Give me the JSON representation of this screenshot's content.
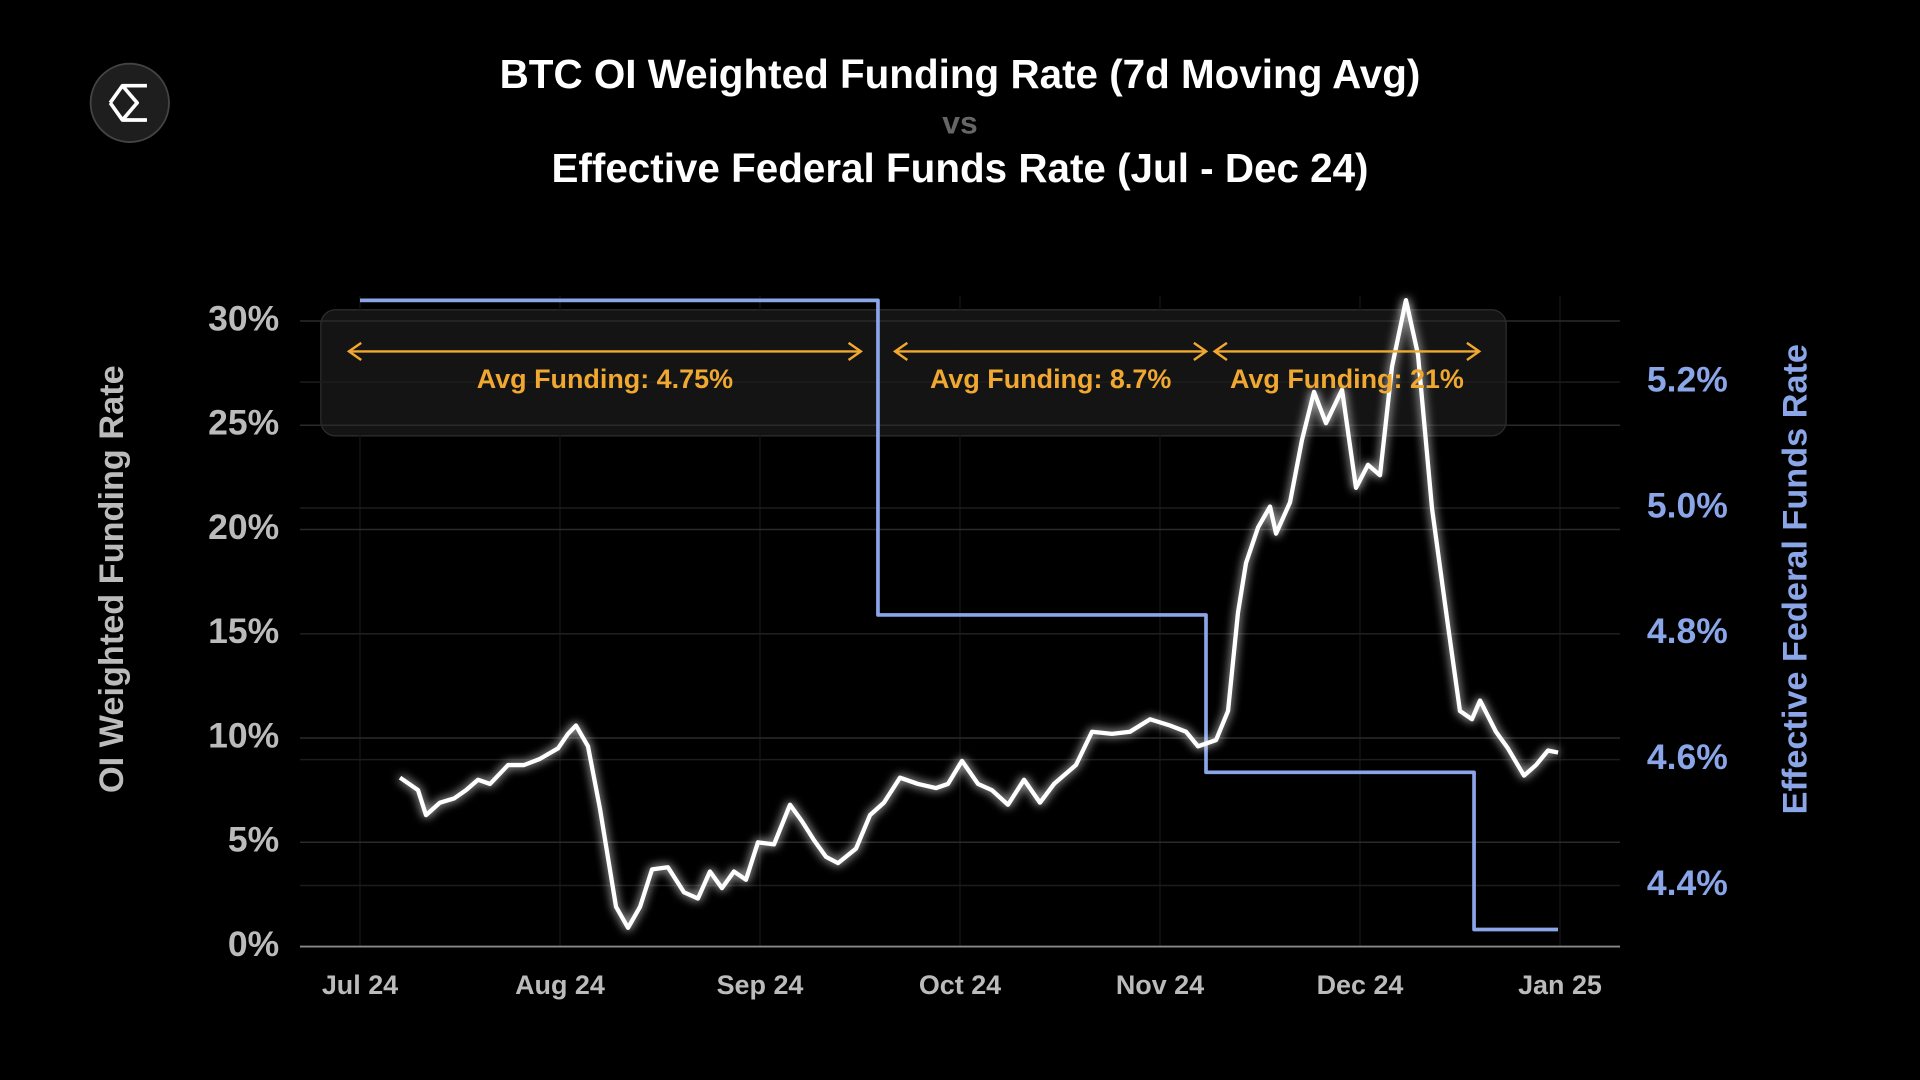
{
  "chart_data": {
    "type": "line",
    "title": [
      "BTC OI Weighted Funding Rate (7d Moving Avg)",
      "vs",
      "Effective Federal Funds Rate (Jul - Dec 24)"
    ],
    "ylabel": "OI Weighted Funding Rate",
    "y2label": "Effective Federal Funds Rate",
    "xlim": [
      -0.3,
      6.3
    ],
    "xticks": [
      {
        "value": 0,
        "label": "Jul 24"
      },
      {
        "value": 1,
        "label": "Aug 24"
      },
      {
        "value": 2,
        "label": "Sep 24"
      },
      {
        "value": 3,
        "label": "Oct 24"
      },
      {
        "value": 4,
        "label": "Nov 24"
      },
      {
        "value": 5,
        "label": "Dec 24"
      },
      {
        "value": 6,
        "label": "Jan 25"
      }
    ],
    "ylim": [
      0,
      31.2
    ],
    "yticks": [
      {
        "value": 0,
        "label": "0%"
      },
      {
        "value": 5,
        "label": "5%"
      },
      {
        "value": 10,
        "label": "10%"
      },
      {
        "value": 15,
        "label": "15%"
      },
      {
        "value": 20,
        "label": "20%"
      },
      {
        "value": 25,
        "label": "25%"
      },
      {
        "value": 30,
        "label": "30%"
      }
    ],
    "y2lim": [
      4.303,
      5.337
    ],
    "y2ticks": [
      {
        "value": 4.4,
        "label": "4.4%"
      },
      {
        "value": 4.6,
        "label": "4.6%"
      },
      {
        "value": 4.8,
        "label": "4.8%"
      },
      {
        "value": 5.0,
        "label": "5.0%"
      },
      {
        "value": 5.2,
        "label": "5.2%"
      }
    ],
    "grid": true,
    "series": [
      {
        "color": "#ffffff",
        "x": [
          0.2,
          0.29,
          0.33,
          0.4,
          0.47,
          0.53,
          0.59,
          0.65,
          0.74,
          0.82,
          0.9,
          0.99,
          1.04,
          1.08,
          1.14,
          1.2,
          1.28,
          1.34,
          1.4,
          1.46,
          1.54,
          1.62,
          1.69,
          1.75,
          1.81,
          1.87,
          1.93,
          1.99,
          2.07,
          2.15,
          2.21,
          2.27,
          2.33,
          2.39,
          2.48,
          2.55,
          2.62,
          2.7,
          2.79,
          2.88,
          2.94,
          3.01,
          3.09,
          3.16,
          3.24,
          3.32,
          3.4,
          3.47,
          3.58,
          3.66,
          3.76,
          3.85,
          3.95,
          4.05,
          4.13,
          4.19,
          4.28,
          4.34,
          4.39,
          4.43,
          4.49,
          4.55,
          4.58,
          4.65,
          4.71,
          4.77,
          4.83,
          4.91,
          4.98,
          5.04,
          5.1,
          5.16,
          5.23,
          5.29,
          5.36,
          5.44,
          5.5,
          5.56,
          5.6,
          5.68,
          5.74,
          5.82,
          5.88,
          5.94,
          5.99
        ],
        "values": [
          8.1,
          7.5,
          6.3,
          6.9,
          7.1,
          7.5,
          8.0,
          7.8,
          8.7,
          8.7,
          9.0,
          9.5,
          10.2,
          10.6,
          9.6,
          6.6,
          1.9,
          0.9,
          1.9,
          3.7,
          3.8,
          2.6,
          2.3,
          3.6,
          2.8,
          3.6,
          3.2,
          5.0,
          4.9,
          6.8,
          6.0,
          5.1,
          4.3,
          4.0,
          4.7,
          6.3,
          6.9,
          8.1,
          7.8,
          7.6,
          7.8,
          8.9,
          7.8,
          7.5,
          6.8,
          8.0,
          6.9,
          7.8,
          8.7,
          10.3,
          10.2,
          10.3,
          10.9,
          10.6,
          10.3,
          9.6,
          9.9,
          11.3,
          16.0,
          18.4,
          20.1,
          21.1,
          19.8,
          21.3,
          24.3,
          26.6,
          25.1,
          26.7,
          22.0,
          23.1,
          22.6,
          27.8,
          31.0,
          28.4,
          21.0,
          15.4,
          11.3,
          10.9,
          11.8,
          10.3,
          9.5,
          8.2,
          8.7,
          9.4,
          9.3
        ]
      },
      {
        "color": "#8aa6e8",
        "axis": "y2",
        "x": [
          0,
          2.59,
          2.59,
          4.23,
          4.23,
          5.57,
          5.57,
          5.99
        ],
        "values": [
          5.33,
          5.33,
          4.83,
          4.83,
          4.58,
          4.58,
          4.33,
          4.33
        ]
      }
    ],
    "annotations": [
      {
        "text": "Avg Funding: 4.75%",
        "color": "#f0a830"
      },
      {
        "text": "Avg Funding: 8.7%",
        "color": "#f0a830"
      },
      {
        "text": "Avg Funding: 21%",
        "color": "#f0a830"
      }
    ]
  }
}
